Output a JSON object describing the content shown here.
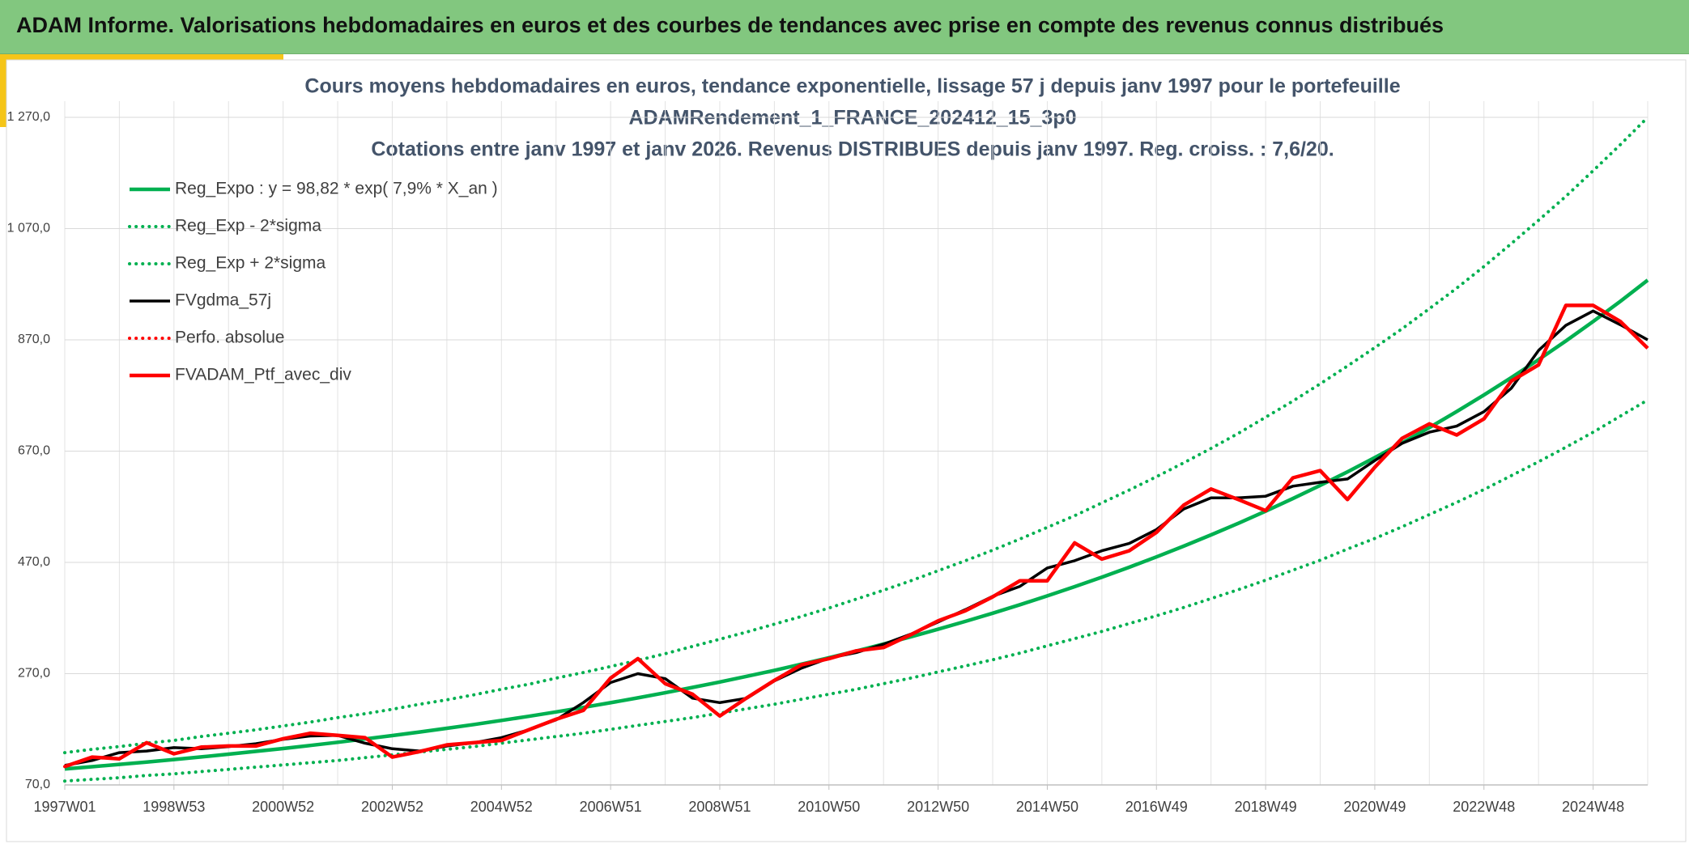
{
  "header": {
    "title": "ADAM Informe. Valorisations hebdomadaires en euros et des courbes de tendances avec prise en compte des revenus connus distribués"
  },
  "chart_data": {
    "type": "line",
    "title": "Cours moyens hebdomadaires en euros, tendance exponentielle, lissage 57 j depuis janv 1997 pour le portefeuille",
    "subtitle": "ADAMRendement_1_FRANCE_202412_15_3p0",
    "subtitle2": "Cotations entre janv 1997 et janv 2026. Revenus DISTRIBUES depuis janv 1997. Reg. croiss. : 7,6/20.",
    "categories": [
      "1997W01",
      null,
      null,
      null,
      "1998W53",
      null,
      null,
      null,
      "2000W52",
      null,
      null,
      null,
      "2002W52",
      null,
      null,
      null,
      "2004W52",
      null,
      null,
      null,
      "2006W51",
      null,
      null,
      null,
      "2008W51",
      null,
      null,
      null,
      "2010W50",
      null,
      null,
      null,
      "2012W50",
      null,
      null,
      null,
      "2014W50",
      null,
      null,
      null,
      "2016W49",
      null,
      null,
      null,
      "2018W49",
      null,
      null,
      null,
      "2020W49",
      null,
      null,
      null,
      "2022W48",
      null,
      null,
      null,
      "2024W48",
      null,
      null
    ],
    "ylim": [
      70,
      1270
    ],
    "yticks": [
      {
        "value": 70,
        "label": "70,0"
      },
      {
        "value": 270,
        "label": "270,0"
      },
      {
        "value": 470,
        "label": "470,0"
      },
      {
        "value": 670,
        "label": "670,0"
      },
      {
        "value": 870,
        "label": "870,0"
      },
      {
        "value": 1070,
        "label": "1 070,0"
      },
      {
        "value": 1270,
        "label": "1 270,0"
      }
    ],
    "grid": true,
    "legend": "top-left",
    "series": [
      {
        "name": "Reg_Expo : y = 98,82 * exp( 7,9% *  X_an )",
        "color": "#00b050",
        "style": "solid",
        "values": [
          98.8,
          102.8,
          106.9,
          111.2,
          115.7,
          120.4,
          125.2,
          130.3,
          135.5,
          141.0,
          146.7,
          152.6,
          158.7,
          165.1,
          171.8,
          178.7,
          185.9,
          193.4,
          201.2,
          209.3,
          217.8,
          226.5,
          235.7,
          245.2,
          255.0,
          265.3,
          276.0,
          287.2,
          298.7,
          310.8,
          323.3,
          336.3,
          349.9,
          364.0,
          378.6,
          393.9,
          409.8,
          426.3,
          443.5,
          461.3,
          479.9,
          499.3,
          519.4,
          540.3,
          562.1,
          584.7,
          608.3,
          632.8,
          658.3,
          684.8,
          712.4,
          741.1,
          771.0,
          802.1,
          834.4,
          868.0,
          903.0,
          939.4,
          977.3
        ]
      },
      {
        "name": "Reg_Exp - 2*sigma",
        "color": "#00b050",
        "style": "dotted",
        "values": [
          77,
          80,
          83,
          87,
          90,
          94,
          98,
          102,
          106,
          110,
          114,
          119,
          124,
          129,
          134,
          139,
          145,
          151,
          157,
          163,
          170,
          177,
          184,
          191,
          199,
          207,
          215,
          224,
          233,
          242,
          252,
          262,
          273,
          284,
          295,
          307,
          320,
          333,
          346,
          360,
          374,
          389,
          405,
          421,
          438,
          456,
          474,
          494,
          513,
          534,
          556,
          578,
          601,
          626,
          651,
          677,
          704,
          733,
          762
        ]
      },
      {
        "name": "Reg_Exp + 2*sigma",
        "color": "#00b050",
        "style": "dotted",
        "values": [
          128,
          134,
          139,
          145,
          150,
          157,
          163,
          169,
          176,
          183,
          191,
          198,
          206,
          215,
          223,
          232,
          242,
          251,
          262,
          272,
          283,
          294,
          306,
          319,
          332,
          345,
          359,
          373,
          388,
          404,
          420,
          437,
          455,
          473,
          492,
          512,
          533,
          554,
          577,
          600,
          624,
          649,
          675,
          702,
          731,
          760,
          791,
          823,
          856,
          890,
          926,
          963,
          1002,
          1043,
          1085,
          1128,
          1174,
          1221,
          1270
        ]
      },
      {
        "name": "FVgdma_57j",
        "color": "#000000",
        "style": "solid",
        "values": [
          105,
          114,
          128,
          131,
          137,
          135,
          139,
          144,
          152,
          158,
          159,
          145,
          135,
          131,
          140,
          146,
          155,
          169,
          187,
          218,
          254,
          270,
          261,
          226,
          218,
          226,
          257,
          280,
          298,
          308,
          323,
          341,
          363,
          385,
          409,
          427,
          460,
          473,
          491,
          504,
          529,
          566,
          586,
          586,
          589,
          607,
          614,
          620,
          653,
          684,
          704,
          715,
          741,
          783,
          851,
          896,
          922,
          897,
          870
        ]
      },
      {
        "name": "Perfo. absolue",
        "color": "#ff0000",
        "style": "dotted",
        "values": [
          103,
          120,
          117,
          146,
          126,
          138,
          140,
          140,
          153,
          163,
          159,
          155,
          120,
          130,
          142,
          146,
          150,
          169,
          188,
          204,
          262,
          297,
          252,
          233,
          194,
          227,
          258,
          286,
          297,
          311,
          317,
          340,
          365,
          383,
          408,
          437,
          437,
          505,
          476,
          491,
          524,
          573,
          602,
          583,
          563,
          622,
          635,
          583,
          641,
          693,
          719,
          699,
          728,
          796,
          825,
          932,
          932,
          903,
          855
        ]
      },
      {
        "name": "FVADAM_Ptf_avec_div",
        "color": "#ff0000",
        "style": "solid",
        "values": [
          103,
          120,
          117,
          146,
          126,
          138,
          140,
          140,
          153,
          163,
          159,
          155,
          120,
          130,
          142,
          146,
          150,
          169,
          188,
          204,
          262,
          297,
          252,
          233,
          194,
          227,
          258,
          286,
          297,
          311,
          317,
          340,
          365,
          383,
          408,
          437,
          437,
          505,
          476,
          491,
          524,
          573,
          602,
          583,
          563,
          622,
          635,
          583,
          641,
          693,
          719,
          699,
          728,
          796,
          825,
          932,
          932,
          903,
          855
        ]
      }
    ]
  }
}
